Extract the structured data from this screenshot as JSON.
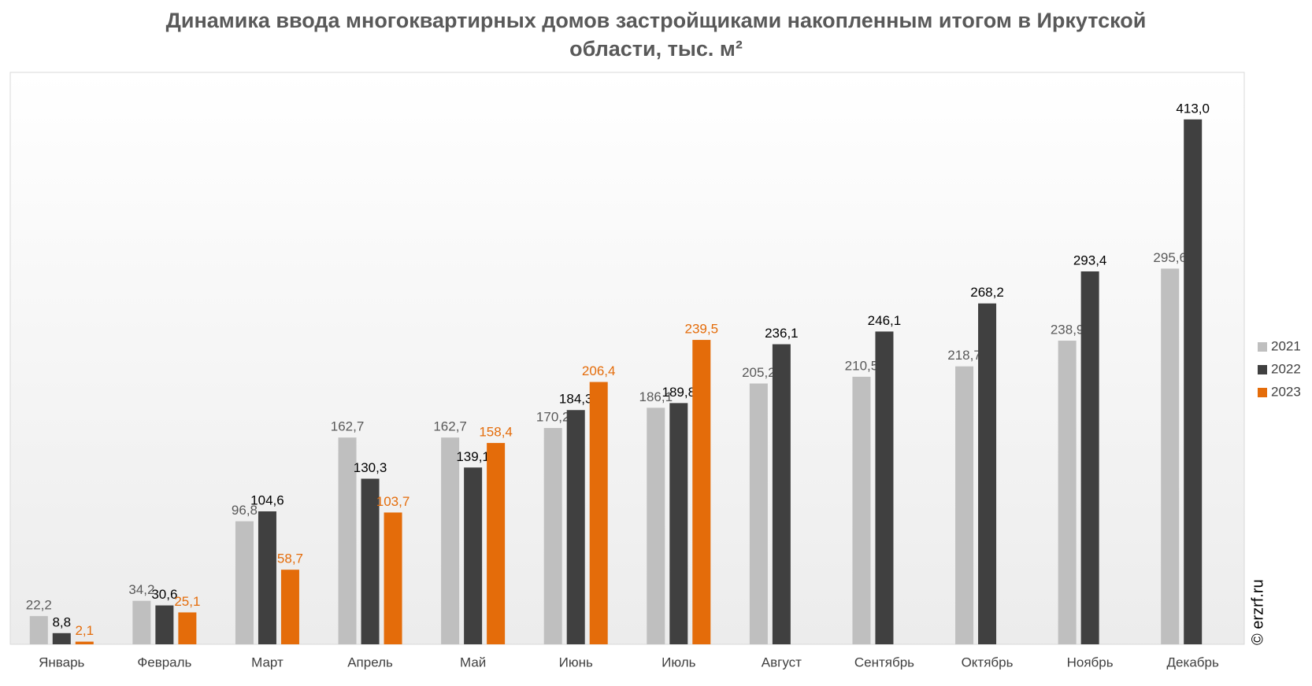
{
  "chart_data": {
    "type": "bar",
    "title": "Динамика ввода многоквартирных домов застройщиками накопленным итогом в Иркутской области, тыс. м²",
    "categories": [
      "Январь",
      "Февраль",
      "Март",
      "Апрель",
      "Май",
      "Июнь",
      "Июль",
      "Август",
      "Сентябрь",
      "Октябрь",
      "Ноябрь",
      "Декабрь"
    ],
    "series": [
      {
        "name": "2021",
        "color": "#bfbfbf",
        "values": [
          22.2,
          34.2,
          96.8,
          162.7,
          162.7,
          170.2,
          186.1,
          205.2,
          210.5,
          218.7,
          238.9,
          295.6
        ],
        "value_labels": [
          "22,2",
          "34,2",
          "96,8",
          "162,7",
          "162,7",
          "170,2",
          "186,1",
          "205,2",
          "210,5",
          "218,7",
          "238,9",
          "295,6"
        ]
      },
      {
        "name": "2022",
        "color": "#404040",
        "values": [
          8.8,
          30.6,
          104.6,
          130.3,
          139.1,
          184.3,
          189.8,
          236.1,
          246.1,
          268.2,
          293.4,
          413.0
        ],
        "value_labels": [
          "8,8",
          "30,6",
          "104,6",
          "130,3",
          "139,1",
          "184,3",
          "189,8",
          "236,1",
          "246,1",
          "268,2",
          "293,4",
          "413,0"
        ]
      },
      {
        "name": "2023",
        "color": "#e46c0a",
        "values": [
          2.1,
          25.1,
          58.7,
          103.7,
          158.4,
          206.4,
          239.5,
          null,
          null,
          null,
          null,
          null
        ],
        "value_labels": [
          "2,1",
          "25,1",
          "58,7",
          "103,7",
          "158,4",
          "206,4",
          "239,5",
          null,
          null,
          null,
          null,
          null
        ]
      }
    ],
    "ylim": [
      0,
      450
    ],
    "legend": "right",
    "copyright": "© erzrf.ru"
  }
}
